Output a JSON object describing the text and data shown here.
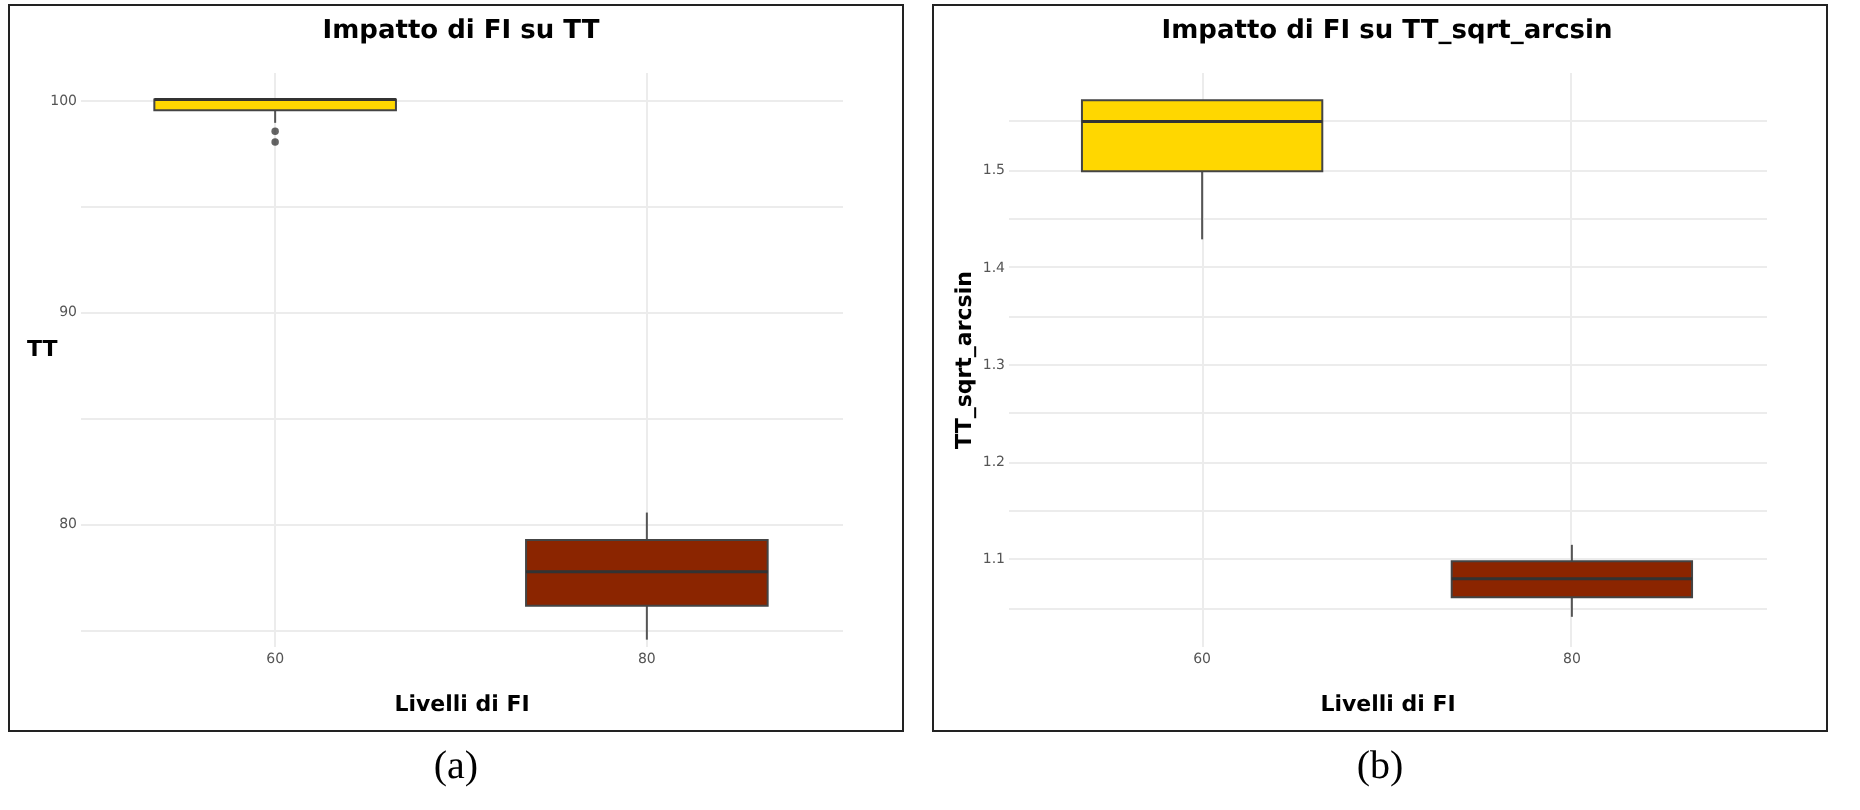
{
  "chart_data": [
    {
      "type": "box",
      "title": "Impatto di FI su TT",
      "xlabel": "Livelli di FI",
      "ylabel": "TT",
      "categories": [
        "60",
        "80"
      ],
      "colors": [
        "#ffd700",
        "#8b2500"
      ],
      "boxes": [
        {
          "low": 98.9,
          "q1": 99.5,
          "median": 100,
          "q3": 100,
          "high": 100,
          "outliers": [
            98.5,
            98.0
          ]
        },
        {
          "low": 74.5,
          "q1": 76.1,
          "median": 77.7,
          "q3": 79.2,
          "high": 80.5
        }
      ],
      "ylim": [
        74.2,
        101.3
      ],
      "yticks": [
        {
          "value": 75,
          "label": null
        },
        80,
        {
          "value": 85,
          "label": null
        },
        90,
        {
          "value": 95,
          "label": null
        },
        100
      ],
      "grid": true,
      "annotations": [
        "(a)"
      ]
    },
    {
      "type": "box",
      "title": "Impatto di  FI  su TT_sqrt_arcsin",
      "xlabel": "Livelli di FI",
      "ylabel": "TT_sqrt_arcsin",
      "categories": [
        "60",
        "80"
      ],
      "colors": [
        "#ffd700",
        "#8b2500"
      ],
      "boxes": [
        {
          "low": 1.428,
          "q1": 1.498,
          "median": 1.549,
          "q3": 1.571,
          "high": 1.571
        },
        {
          "low": 1.04,
          "q1": 1.06,
          "median": 1.079,
          "q3": 1.097,
          "high": 1.114
        }
      ],
      "ylim": [
        1.01,
        1.6
      ],
      "yticks": [
        {
          "value": 1.05,
          "label": null
        },
        1.1,
        {
          "value": 1.15,
          "label": null
        },
        1.2,
        {
          "value": 1.25,
          "label": null
        },
        1.3,
        {
          "value": 1.35,
          "label": null
        },
        1.4,
        {
          "value": 1.45,
          "label": null
        },
        1.5,
        {
          "value": 1.55,
          "label": null
        }
      ],
      "grid": true,
      "annotations": [
        "(b)"
      ]
    }
  ]
}
